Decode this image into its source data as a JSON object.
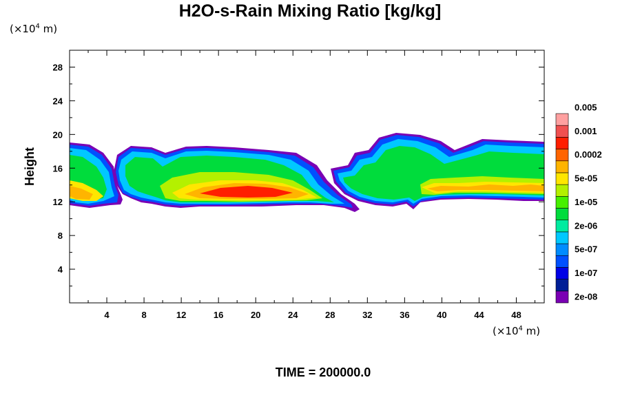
{
  "chart_data": {
    "type": "heatmap",
    "title": "H2O-s-Rain Mixing Ratio [kg/kg]",
    "ylabel": "Height",
    "y_unit": "(×10⁴ m)",
    "x_unit": "(×10⁴ m)",
    "footer": "TIME = 200000.0",
    "xlim": [
      0,
      51
    ],
    "ylim": [
      0,
      30
    ],
    "xticks": [
      "4",
      "8",
      "12",
      "16",
      "20",
      "24",
      "28",
      "32",
      "36",
      "40",
      "44",
      "48"
    ],
    "yticks": [
      "4",
      "8",
      "12",
      "16",
      "20",
      "24",
      "28"
    ],
    "colorbar": {
      "colors": [
        "#7a00b4",
        "#001e96",
        "#0000e6",
        "#0050ff",
        "#008cff",
        "#00c8ff",
        "#00eba0",
        "#00dc3c",
        "#46f000",
        "#b4f000",
        "#ffe600",
        "#ffb400",
        "#ff6400",
        "#ff1e00",
        "#f05050",
        "#ffa0a0"
      ],
      "labels": [
        "2e-08",
        "1e-07",
        "5e-07",
        "2e-06",
        "1e-05",
        "5e-05",
        "0.0002",
        "0.001",
        "0.005"
      ]
    },
    "field": {
      "description_units": "x in 10^4 m, height in 10^4 m, value = colour class index (0-15)",
      "cells": [
        {
          "x": [
            0,
            5
          ],
          "y": [
            11.5,
            19
          ],
          "level": 7
        },
        {
          "x": [
            0.5,
            4
          ],
          "y": [
            12,
            14.5
          ],
          "level": 11
        },
        {
          "x": [
            5,
            11
          ],
          "y": [
            11,
            18.5
          ],
          "level": 7
        },
        {
          "x": [
            9,
            22
          ],
          "y": [
            11,
            19
          ],
          "level": 7
        },
        {
          "x": [
            22,
            31
          ],
          "y": [
            11,
            18
          ],
          "level": 6
        },
        {
          "x": [
            13,
            28
          ],
          "y": [
            12,
            14.5
          ],
          "level": 13
        },
        {
          "x": [
            28,
            37
          ],
          "y": [
            11,
            19.5
          ],
          "level": 6
        },
        {
          "x": [
            37,
            51
          ],
          "y": [
            11.5,
            20
          ],
          "level": 7
        },
        {
          "x": [
            38,
            51
          ],
          "y": [
            12,
            14.5
          ],
          "level": 11
        }
      ]
    }
  }
}
